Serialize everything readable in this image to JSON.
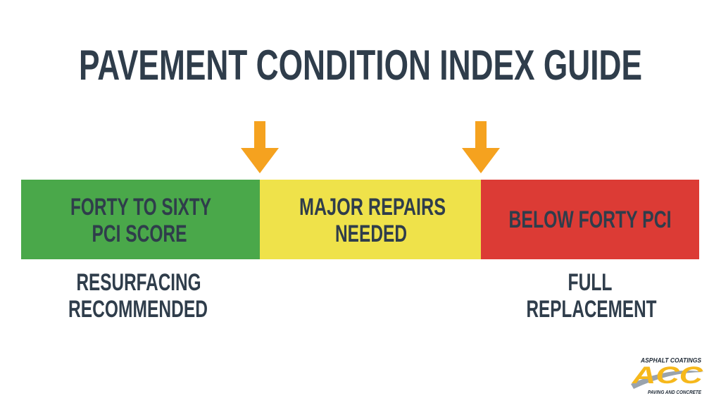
{
  "header": {
    "title": "PAVEMENT CONDITION INDEX GUIDE"
  },
  "segments": [
    {
      "lines": [
        "FORTY TO SIXTY",
        "PCI SCORE"
      ]
    },
    {
      "lines": [
        "MAJOR REPAIRS",
        "NEEDED"
      ]
    },
    {
      "lines": [
        "BELOW FORTY PCI"
      ]
    }
  ],
  "notes": [
    {
      "lines": [
        "RESURFACING",
        "RECOMMENDED"
      ]
    },
    {
      "lines": [
        "FULL",
        "REPLACEMENT"
      ]
    }
  ],
  "logo": {
    "top": "ASPHALT COATINGS",
    "mark": "ACC",
    "bottom": "PAVING AND CONCRETE"
  }
}
